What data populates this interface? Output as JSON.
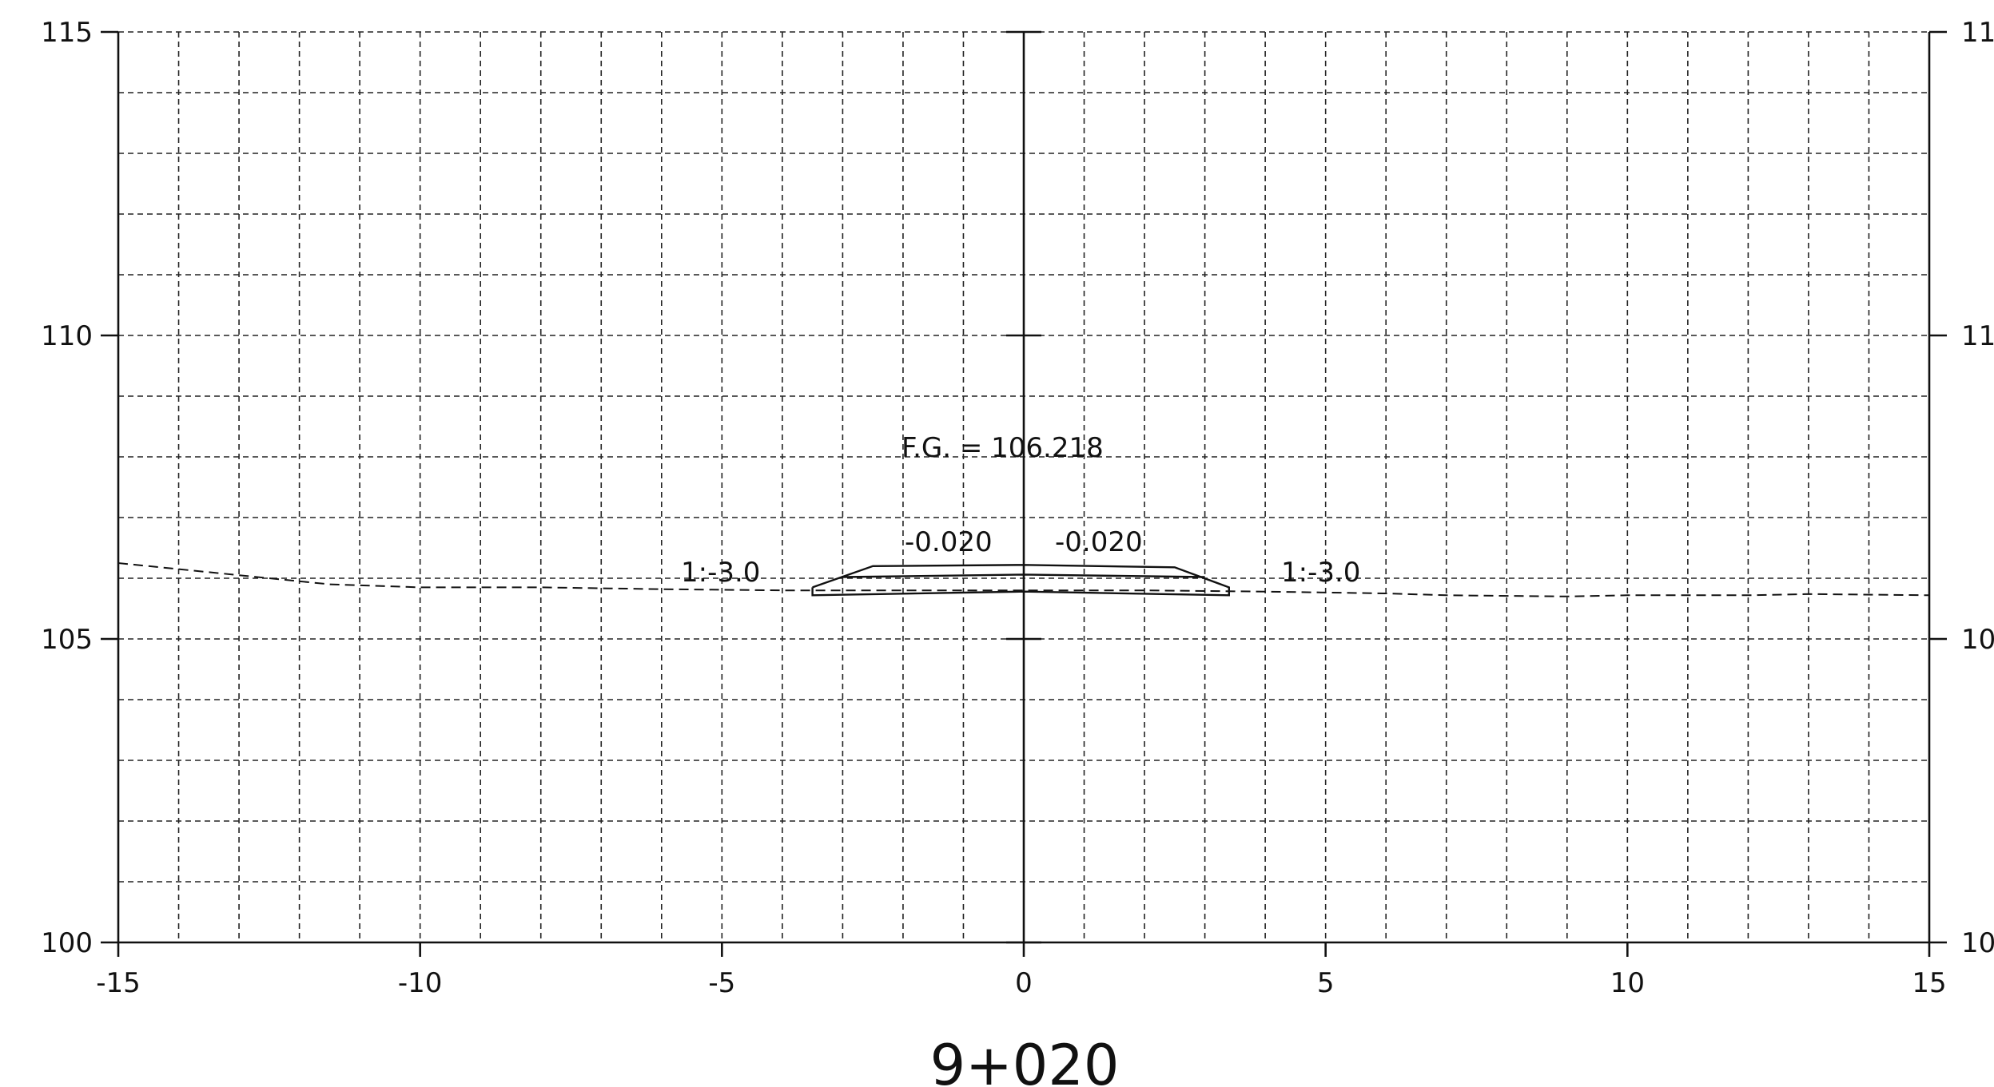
{
  "station_label": "9+020",
  "axes": {
    "x_ticks": [
      "-15",
      "-10",
      "-5",
      "0",
      "5",
      "10",
      "15"
    ],
    "y_ticks": [
      "100",
      "105",
      "110",
      "115"
    ],
    "y_ticks_right": [
      "10",
      "10",
      "11",
      "11"
    ]
  },
  "annotations": {
    "fg_label": "F.G. = 106.218",
    "slope_left": "-0.020",
    "slope_right": "-0.020",
    "side_slope_left": "1:-3.0",
    "side_slope_right": "1:-3.0"
  },
  "chart_data": {
    "type": "line",
    "title": "",
    "xlim": [
      -15,
      15
    ],
    "ylim": [
      100,
      115
    ],
    "x_grid_step": 1,
    "y_grid_step": 1,
    "grid": true,
    "series": [
      {
        "style": "dashed",
        "x": [
          -15,
          -13,
          -11.5,
          -10,
          -8,
          -6,
          -4,
          -2,
          0,
          2,
          4,
          6,
          7,
          9,
          10,
          12,
          13,
          15
        ],
        "y": [
          106.25,
          106.05,
          105.9,
          105.85,
          105.85,
          105.82,
          105.8,
          105.8,
          105.8,
          105.8,
          105.78,
          105.75,
          105.72,
          105.7,
          105.72,
          105.72,
          105.74,
          105.72
        ]
      },
      {
        "style": "solid",
        "x": [
          -3.5,
          -2.5,
          0,
          2.5,
          3.4,
          3.4,
          0,
          -3.5,
          -3.5
        ],
        "y": [
          105.85,
          106.2,
          106.22,
          106.18,
          105.85,
          105.72,
          105.78,
          105.72,
          105.85
        ]
      },
      {
        "style": "solid",
        "x": [
          -3.0,
          0,
          3.0
        ],
        "y": [
          106.02,
          106.06,
          106.02
        ]
      }
    ]
  }
}
